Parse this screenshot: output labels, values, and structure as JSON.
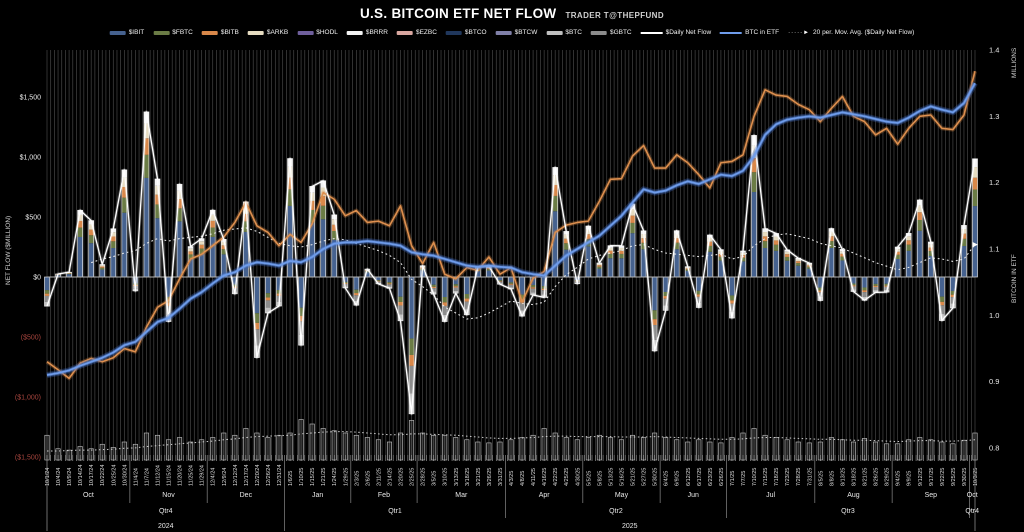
{
  "header": {
    "title": "U.S. BITCOIN ETF NET FLOW",
    "subtitle": "TRADER T@THEPFUND"
  },
  "legend": {
    "items": [
      {
        "label": "$IBIT",
        "color": "#46628f",
        "swatch": "bar"
      },
      {
        "label": "$FBTC",
        "color": "#6b7c45",
        "swatch": "bar"
      },
      {
        "label": "$BITB",
        "color": "#d9884a",
        "swatch": "bar"
      },
      {
        "label": "$ARKB",
        "color": "#e6dcc1",
        "swatch": "bar"
      },
      {
        "label": "$HODL",
        "color": "#6f5f9c",
        "swatch": "bar"
      },
      {
        "label": "$BRRR",
        "color": "#f2f2f2",
        "swatch": "bar"
      },
      {
        "label": "$EZBC",
        "color": "#d9a7a0",
        "swatch": "bar"
      },
      {
        "label": "$BTCO",
        "color": "#20375c",
        "swatch": "bar"
      },
      {
        "label": "$BTCW",
        "color": "#8080a8",
        "swatch": "bar"
      },
      {
        "label": "$BTC",
        "color": "#bfbfbf",
        "swatch": "bar"
      },
      {
        "label": "$GBTC",
        "color": "#8c8c8c",
        "swatch": "bar"
      },
      {
        "label": "$Daily Net Flow",
        "color": "#ffffff",
        "swatch": "line"
      },
      {
        "label": "BTC in ETF",
        "color": "#6f9ceb",
        "swatch": "line"
      },
      {
        "label": "20 per. Mov. Avg. ($Daily Net Flow)",
        "color": "#ffffff",
        "swatch": "dotted-arrow"
      }
    ]
  },
  "colors": {
    "background": "#000000",
    "day_gridline": "#464646",
    "zero_line": "#b5b5b5",
    "axis_text": "#e8e8e8",
    "negative_text": "#a8453e",
    "separator": "#8a8a8a",
    "daily_net_flow_line": "#ffffff",
    "btc_in_etf_line": "#6f9ceb",
    "orange_line": "#dd8f4e",
    "ma_dotted_line": "#e8e8e8",
    "bottom_histogram_stroke": "#c8c8c8",
    "etf": {
      "IBIT": "#46628f",
      "FBTC": "#6b7c45",
      "BITB": "#d9884a",
      "ARKB": "#e6dcc1",
      "HODL": "#6f5f9c",
      "BRRR": "#f2f2f2",
      "EZBC": "#d9a7a0",
      "BTCO": "#20375c",
      "BTCW": "#8080a8",
      "BTC": "#bfbfbf",
      "GBTC": "#8c8c8c"
    }
  },
  "chart_data": {
    "type": "composite",
    "title": "U.S. BITCOIN ETF NET FLOW",
    "subtitle": "TRADER T@THEPFUND",
    "grid": "vertical-daily",
    "legend_position": "top",
    "left_axis": {
      "label": "NET FLOW ($MILLION)",
      "ticks": [
        "$1,500",
        "$1,000",
        "$500",
        "$0",
        "($500)",
        "($1,000)",
        "($1,500)"
      ],
      "tick_values": [
        1500,
        1000,
        500,
        0,
        -500,
        -1000,
        -1500
      ],
      "range": [
        -1500,
        1500
      ]
    },
    "right_axis": {
      "label": "BITCOIN IN ETF",
      "units_label": "MILLIONS",
      "ticks": [
        "1.4",
        "1.3",
        "1.2",
        "1.1",
        "1.0",
        "0.9",
        "0.8"
      ],
      "tick_values": [
        1.4,
        1.3,
        1.2,
        1.1,
        1.0,
        0.9,
        0.8
      ],
      "range": [
        0.8,
        1.4
      ]
    },
    "x_tick_dates": [
      "10/1/24",
      "10/4/24",
      "10/9/24",
      "10/14/24",
      "10/17/24",
      "10/22/24",
      "10/25/24",
      "10/30/24",
      "11/4/24",
      "11/7/24",
      "11/12/24",
      "11/15/24",
      "11/20/24",
      "11/25/24",
      "11/29/24",
      "12/4/24",
      "12/9/24",
      "12/12/24",
      "12/17/24",
      "12/20/24",
      "12/26/24",
      "12/31/24",
      "1/6/25",
      "1/10/25",
      "1/15/25",
      "1/21/25",
      "1/24/25",
      "1/29/25",
      "2/3/25",
      "2/6/25",
      "2/11/25",
      "2/14/25",
      "2/20/25",
      "2/25/25",
      "2/28/25",
      "3/5/25",
      "3/10/25",
      "3/13/25",
      "3/18/25",
      "3/21/25",
      "3/26/25",
      "3/31/25",
      "4/3/25",
      "4/8/25",
      "4/11/25",
      "4/16/25",
      "4/22/25",
      "4/25/25",
      "4/30/25",
      "5/5/25",
      "5/8/25",
      "5/13/25",
      "5/16/25",
      "5/21/25",
      "5/27/25",
      "5/30/25",
      "6/4/25",
      "6/9/25",
      "6/12/25",
      "6/17/25",
      "6/23/25",
      "6/26/25",
      "7/1/25",
      "7/7/25",
      "7/10/25",
      "7/15/25",
      "7/18/25",
      "7/23/25",
      "7/28/25",
      "7/31/25",
      "8/5/25",
      "8/8/25",
      "8/13/25",
      "8/18/25",
      "8/21/25",
      "8/26/25",
      "8/29/25",
      "9/4/25",
      "9/9/25",
      "9/12/25",
      "9/17/25",
      "9/22/25",
      "9/25/25",
      "9/30/25",
      "10/3/25"
    ],
    "months": [
      {
        "label": "Oct",
        "tick_start": 0
      },
      {
        "label": "Nov",
        "tick_start": 8
      },
      {
        "label": "Dec",
        "tick_start": 15
      },
      {
        "label": "Jan",
        "tick_start": 22
      },
      {
        "label": "Feb",
        "tick_start": 28
      },
      {
        "label": "Mar",
        "tick_start": 34
      },
      {
        "label": "Apr",
        "tick_start": 42
      },
      {
        "label": "May",
        "tick_start": 49
      },
      {
        "label": "Jun",
        "tick_start": 56
      },
      {
        "label": "Jul",
        "tick_start": 62
      },
      {
        "label": "Aug",
        "tick_start": 70
      },
      {
        "label": "Sep",
        "tick_start": 77
      },
      {
        "label": "Oct",
        "tick_start": 84
      }
    ],
    "quarters": [
      {
        "label": "Qtr4",
        "tick_start": 0,
        "tick_end": 21
      },
      {
        "label": "Qtr1",
        "tick_start": 22,
        "tick_end": 41
      },
      {
        "label": "Qtr2",
        "tick_start": 42,
        "tick_end": 61
      },
      {
        "label": "Qtr3",
        "tick_start": 62,
        "tick_end": 83
      },
      {
        "label": "Qtr4",
        "tick_start": 84,
        "tick_end": 84
      }
    ],
    "years": [
      {
        "label": "2024",
        "tick_start": 0,
        "tick_end": 21
      },
      {
        "label": "2025",
        "tick_start": 22,
        "tick_end": 84
      }
    ],
    "series": {
      "daily_net_flow_musd": [
        -243,
        25,
        40,
        556,
        470,
        104,
        402,
        893,
        -116,
        1376,
        817,
        -371,
        773,
        254,
        320,
        557,
        314,
        -140,
        626,
        -671,
        -300,
        -242,
        987,
        -568,
        755,
        802,
        518,
        -91,
        -235,
        66,
        -57,
        -94,
        -365,
        -1140,
        94,
        -143,
        -371,
        -135,
        -315,
        83,
        89,
        -60,
        -100,
        -326,
        -150,
        -170,
        913,
        380,
        -56,
        425,
        117,
        261,
        260,
        609,
        385,
        -616,
        -278,
        386,
        86,
        -254,
        350,
        228,
        -342,
        217,
        1180,
        403,
        363,
        226,
        157,
        116,
        -196,
        404,
        230,
        -121,
        -194,
        -128,
        -126,
        250,
        364,
        642,
        292,
        -363,
        -258,
        430,
        985
      ],
      "btc_in_etf_millions": [
        0.91,
        0.913,
        0.917,
        0.924,
        0.93,
        0.936,
        0.944,
        0.955,
        0.96,
        0.975,
        0.99,
        0.996,
        1.01,
        1.025,
        1.035,
        1.048,
        1.06,
        1.065,
        1.075,
        1.08,
        1.078,
        1.075,
        1.082,
        1.08,
        1.088,
        1.1,
        1.108,
        1.11,
        1.11,
        1.112,
        1.11,
        1.108,
        1.105,
        1.095,
        1.092,
        1.09,
        1.085,
        1.08,
        1.075,
        1.073,
        1.075,
        1.073,
        1.072,
        1.065,
        1.062,
        1.06,
        1.075,
        1.09,
        1.1,
        1.11,
        1.12,
        1.135,
        1.15,
        1.17,
        1.19,
        1.185,
        1.188,
        1.196,
        1.202,
        1.198,
        1.205,
        1.212,
        1.21,
        1.218,
        1.24,
        1.272,
        1.288,
        1.295,
        1.298,
        1.3,
        1.298,
        1.302,
        1.306,
        1.303,
        1.3,
        1.296,
        1.292,
        1.29,
        1.298,
        1.308,
        1.315,
        1.31,
        1.306,
        1.32,
        1.35
      ],
      "orange_line_right_axis_units": [
        0.93,
        0.918,
        0.905,
        0.928,
        0.935,
        0.93,
        0.936,
        0.95,
        0.945,
        0.982,
        1.012,
        1.022,
        1.055,
        1.085,
        1.092,
        1.105,
        1.118,
        1.14,
        1.17,
        1.135,
        1.125,
        1.105,
        1.122,
        1.11,
        1.138,
        1.185,
        1.175,
        1.15,
        1.158,
        1.14,
        1.142,
        1.135,
        1.165,
        1.105,
        1.078,
        1.11,
        1.062,
        1.055,
        1.072,
        1.068,
        1.088,
        1.062,
        1.072,
        1.02,
        1.056,
        1.066,
        1.125,
        1.136,
        1.14,
        1.142,
        1.172,
        1.205,
        1.206,
        1.24,
        1.256,
        1.222,
        1.222,
        1.242,
        1.23,
        1.212,
        1.192,
        1.23,
        1.232,
        1.242,
        1.3,
        1.34,
        1.332,
        1.33,
        1.318,
        1.31,
        1.292,
        1.312,
        1.33,
        1.3,
        1.292,
        1.272,
        1.282,
        1.258,
        1.282,
        1.3,
        1.302,
        1.282,
        1.28,
        1.302,
        1.368
      ],
      "ma20_daily_net_flow_musd": [
        null,
        null,
        null,
        null,
        120,
        150,
        170,
        200,
        220,
        280,
        320,
        300,
        320,
        330,
        340,
        360,
        390,
        400,
        410,
        380,
        330,
        280,
        260,
        250,
        270,
        300,
        320,
        310,
        280,
        250,
        220,
        180,
        120,
        -20,
        -80,
        -150,
        -250,
        -300,
        -350,
        -340,
        -300,
        -250,
        -200,
        -220,
        -230,
        -210,
        -80,
        20,
        80,
        150,
        180,
        200,
        220,
        260,
        270,
        230,
        200,
        190,
        180,
        170,
        180,
        190,
        150,
        170,
        260,
        320,
        350,
        360,
        340,
        320,
        280,
        260,
        240,
        200,
        160,
        120,
        90,
        60,
        80,
        120,
        160,
        150,
        130,
        150,
        270
      ],
      "bottom_histogram_unlabeled_units": [
        55,
        25,
        22,
        30,
        25,
        35,
        28,
        40,
        35,
        60,
        55,
        45,
        50,
        40,
        45,
        50,
        60,
        55,
        70,
        60,
        50,
        55,
        60,
        90,
        80,
        70,
        65,
        60,
        55,
        50,
        45,
        40,
        60,
        88,
        60,
        55,
        55,
        50,
        45,
        40,
        38,
        40,
        45,
        50,
        55,
        70,
        60,
        50,
        45,
        50,
        55,
        50,
        45,
        55,
        50,
        60,
        50,
        45,
        40,
        45,
        40,
        38,
        50,
        60,
        70,
        55,
        50,
        45,
        40,
        38,
        40,
        50,
        45,
        40,
        48,
        40,
        36,
        36,
        45,
        50,
        45,
        40,
        36,
        44,
        60
      ],
      "bottom_histogram_dotted_avg_units": [
        20,
        20,
        21,
        22,
        22,
        23,
        24,
        26,
        27,
        30,
        32,
        34,
        36,
        38,
        40,
        42,
        45,
        47,
        50,
        52,
        53,
        54,
        55,
        58,
        60,
        62,
        63,
        63,
        62,
        60,
        58,
        56,
        56,
        58,
        58,
        57,
        56,
        55,
        53,
        51,
        49,
        48,
        48,
        49,
        50,
        52,
        53,
        53,
        52,
        52,
        52,
        52,
        51,
        51,
        51,
        52,
        51,
        50,
        49,
        48,
        47,
        46,
        46,
        47,
        49,
        50,
        50,
        49,
        48,
        47,
        46,
        46,
        45,
        44,
        44,
        43,
        42,
        41,
        42,
        43,
        43,
        42,
        42,
        43,
        45
      ]
    },
    "stack_fractions_approx": {
      "note": "Per-ETF split of each stacked daily bar is approximated from the visual; totals are the series values.",
      "positive": [
        [
          "IBIT",
          0.6
        ],
        [
          "FBTC",
          0.14
        ],
        [
          "BITB",
          0.1
        ],
        [
          "ARKB",
          0.09
        ],
        [
          "BRRR",
          0.07
        ]
      ],
      "negative": [
        [
          "IBIT",
          0.45
        ],
        [
          "FBTC",
          0.12
        ],
        [
          "BITB",
          0.08
        ],
        [
          "GBTC",
          0.2
        ],
        [
          "BTC",
          0.15
        ]
      ]
    }
  }
}
